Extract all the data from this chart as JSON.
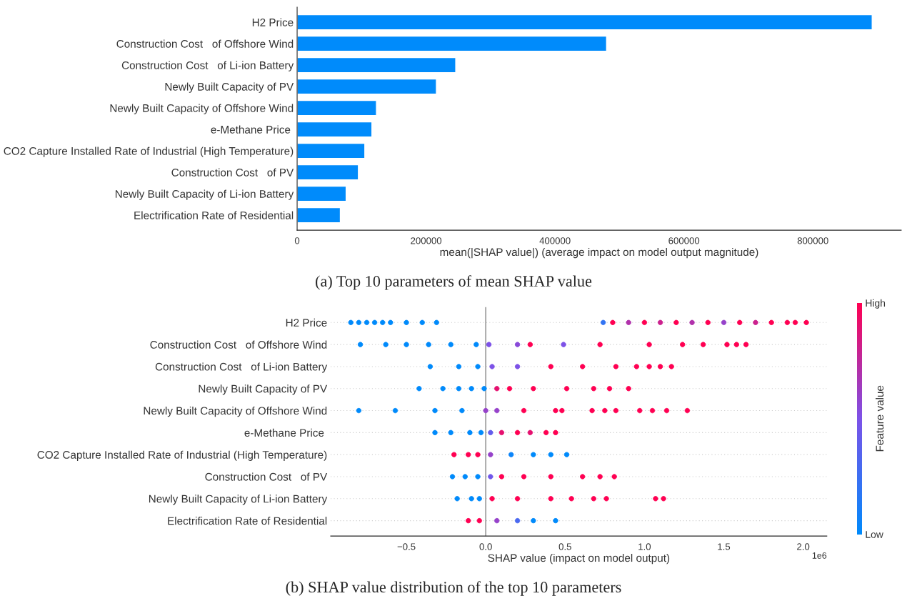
{
  "chart_data": [
    {
      "type": "bar",
      "orientation": "horizontal",
      "xlabel": "mean(|SHAP value|) (average impact on model output magnitude)",
      "categories": [
        "H2 Price",
        "Construction Cost   of Offshore Wind",
        "Construction Cost   of Li-ion Battery",
        "Newly Built Capacity of PV",
        "Newly Built Capacity of Offshore Wind",
        "e-Methane Price ",
        "CO2 Capture Installed Rate of Industrial (High Temperature)",
        "Construction Cost   of PV",
        "Newly Built Capacity of Li-ion Battery",
        "Electrification Rate of Residential"
      ],
      "values": [
        892000,
        480000,
        246000,
        216000,
        123000,
        116000,
        105000,
        95000,
        76000,
        67000
      ],
      "color": "#008bfb",
      "xlim": [
        0,
        937000
      ],
      "xticks": [
        0,
        200000,
        400000,
        600000,
        800000
      ],
      "grid": false,
      "annotations": [
        "(a) Top 10 parameters of mean SHAP value"
      ]
    },
    {
      "type": "scatter",
      "orientation": "horizontal",
      "xlabel": "SHAP value (impact on model output)",
      "clabel": "Feature value",
      "categories": [
        "H2 Price",
        "Construction Cost   of Offshore Wind",
        "Construction Cost   of Li-ion Battery",
        "Newly Built Capacity of PV",
        "Newly Built Capacity of Offshore Wind",
        "e-Methane Price ",
        "CO2 Capture Installed Rate of Industrial (High Temperature)",
        "Construction Cost   of PV",
        "Newly Built Capacity of Li-ion Battery",
        "Electrification Rate of Residential"
      ],
      "series": [
        {
          "values": [
            -0.85,
            -0.79,
            -0.35,
            -0.42,
            -0.8,
            -0.32,
            -0.2,
            -0.21,
            -0.18,
            -0.11
          ],
          "cvalues": [
            0,
            0,
            0,
            0,
            0,
            0,
            1,
            0,
            0,
            1
          ],
          "colors": [
            "#008afb",
            "#008afb",
            "#008afb",
            "#008afb",
            "#008afb",
            "#008afb",
            "#ff0052",
            "#008afb",
            "#008afb",
            "#ff0052"
          ]
        },
        {
          "values": [
            -0.8,
            -0.63,
            -0.17,
            -0.27,
            -0.57,
            -0.22,
            -0.11,
            -0.13,
            -0.09,
            -0.04
          ],
          "cvalues": [
            0,
            0,
            0,
            0,
            0,
            0,
            1,
            0,
            0,
            1
          ],
          "colors": [
            "#008afb",
            "#008afb",
            "#008afb",
            "#008afb",
            "#008afb",
            "#008afb",
            "#ff0052",
            "#008afb",
            "#008afb",
            "#ff0052"
          ]
        },
        {
          "values": [
            -0.75,
            -0.5,
            -0.05,
            -0.17,
            -0.32,
            -0.1,
            -0.05,
            -0.05,
            -0.04,
            0.07
          ],
          "cvalues": [
            0,
            0,
            0,
            0,
            0,
            0,
            1,
            0,
            0,
            0.6
          ],
          "colors": [
            "#008afb",
            "#008afb",
            "#008afb",
            "#008afb",
            "#008afb",
            "#008afb",
            "#ff0052",
            "#008afb",
            "#008afb",
            "#9642ca"
          ]
        },
        {
          "values": [
            -0.7,
            -0.36,
            0.04,
            -0.09,
            -0.15,
            -0.03,
            0.03,
            0.03,
            0.04,
            0.2
          ],
          "cvalues": [
            0,
            0,
            0.5,
            0,
            0,
            0,
            0.6,
            0.45,
            1,
            0.3
          ],
          "colors": [
            "#008afb",
            "#008afb",
            "#7c52e8",
            "#008afb",
            "#008afb",
            "#008afb",
            "#9642ca",
            "#7058ea",
            "#ff0052",
            "#4a68f0"
          ]
        },
        {
          "values": [
            -0.65,
            -0.22,
            0.2,
            -0.01,
            0.0,
            0.03,
            0.16,
            0.1,
            0.2,
            0.3
          ],
          "cvalues": [
            0,
            0,
            0.5,
            0,
            0.6,
            0.4,
            0.05,
            1,
            1,
            0
          ],
          "colors": [
            "#008afb",
            "#008afb",
            "#7c52e8",
            "#008afb",
            "#9642ca",
            "#635dec",
            "#0c84f9",
            "#ff0052",
            "#ff0052",
            "#008afb"
          ]
        },
        {
          "values": [
            -0.6,
            -0.06,
            0.41,
            0.07,
            0.07,
            0.1,
            0.3,
            0.24,
            0.41,
            0.44
          ],
          "cvalues": [
            0,
            0,
            1,
            0.9,
            0.6,
            0.9,
            0,
            1,
            1,
            0
          ],
          "colors": [
            "#008afb",
            "#008afb",
            "#ff0052",
            "#e51070",
            "#9642ca",
            "#e51070",
            "#008afb",
            "#ff0052",
            "#ff0052",
            "#008afb"
          ]
        },
        {
          "values": [
            -0.5,
            0.02,
            0.61,
            0.15,
            0.24,
            0.2,
            0.41,
            0.41,
            0.54,
            null
          ],
          "cvalues": [
            0,
            0.5,
            1,
            1,
            1,
            1,
            0,
            1,
            1,
            null
          ],
          "colors": [
            "#008afb",
            "#7c52e8",
            "#ff0052",
            "#ff0052",
            "#ff0052",
            "#ff0052",
            "#008afb",
            "#ff0052",
            "#ff0052",
            null
          ]
        },
        {
          "values": [
            -0.4,
            0.2,
            0.82,
            0.3,
            0.44,
            0.28,
            0.51,
            0.61,
            0.68,
            null
          ],
          "cvalues": [
            0,
            0.55,
            1,
            1,
            1,
            0.9,
            0,
            1,
            1,
            null
          ],
          "colors": [
            "#008afb",
            "#894ad9",
            "#ff0052",
            "#ff0052",
            "#ff0052",
            "#e51070",
            "#008afb",
            "#ff0052",
            "#ff0052",
            null
          ]
        },
        {
          "values": [
            -0.31,
            0.28,
            0.95,
            0.51,
            0.48,
            0.38,
            null,
            0.72,
            0.76,
            null
          ],
          "cvalues": [
            0,
            1,
            1,
            1,
            1,
            1,
            null,
            1,
            1,
            null
          ],
          "colors": [
            "#008afb",
            "#ff0052",
            "#ff0052",
            "#ff0052",
            "#ff0052",
            "#ff0052",
            null,
            "#ff0052",
            "#ff0052",
            null
          ]
        },
        {
          "values": [
            0.74,
            0.49,
            1.03,
            0.68,
            0.67,
            0.44,
            null,
            0.81,
            1.07,
            null
          ],
          "cvalues": [
            0.2,
            0.5,
            1,
            1,
            1,
            1,
            null,
            1,
            1,
            null
          ],
          "colors": [
            "#3274f3",
            "#7c52e8",
            "#ff0052",
            "#ff0052",
            "#ff0052",
            "#ff0052",
            null,
            "#ff0052",
            "#ff0052",
            null
          ]
        },
        {
          "values": [
            0.8,
            0.72,
            1.1,
            0.78,
            0.75,
            null,
            null,
            null,
            1.12,
            null
          ],
          "cvalues": [
            1,
            1,
            1,
            1,
            1,
            null,
            null,
            null,
            1,
            null
          ],
          "colors": [
            "#ff0052",
            "#ff0052",
            "#ff0052",
            "#ff0052",
            "#ff0052",
            null,
            null,
            null,
            "#ff0052",
            null
          ]
        },
        {
          "values": [
            0.9,
            1.03,
            1.17,
            0.9,
            0.82,
            null,
            null,
            null,
            null,
            null
          ],
          "cvalues": [
            0.7,
            1,
            1,
            1,
            1,
            null,
            null,
            null,
            null,
            null
          ],
          "colors": [
            "#b031ac",
            "#ff0052",
            "#ff0052",
            "#ff0052",
            "#ff0052",
            null,
            null,
            null,
            null,
            null
          ]
        },
        {
          "values": [
            1.0,
            1.24,
            null,
            null,
            0.97,
            null,
            null,
            null,
            null,
            null
          ],
          "cvalues": [
            1,
            1,
            null,
            null,
            1,
            null,
            null,
            null,
            null,
            null
          ],
          "colors": [
            "#ff0052",
            "#ff0052",
            null,
            null,
            "#ff0052",
            null,
            null,
            null,
            null,
            null
          ]
        },
        {
          "values": [
            1.1,
            1.37,
            null,
            null,
            1.05,
            null,
            null,
            null,
            null,
            null
          ],
          "cvalues": [
            0.8,
            1,
            null,
            null,
            1,
            null,
            null,
            null,
            null,
            null
          ],
          "colors": [
            "#cb218e",
            "#ff0052",
            null,
            null,
            "#ff0052",
            null,
            null,
            null,
            null,
            null
          ]
        },
        {
          "values": [
            1.2,
            1.52,
            null,
            null,
            1.14,
            null,
            null,
            null,
            null,
            null
          ],
          "cvalues": [
            1,
            1,
            null,
            null,
            1,
            null,
            null,
            null,
            null,
            null
          ],
          "colors": [
            "#ff0052",
            "#ff0052",
            null,
            null,
            "#ff0052",
            null,
            null,
            null,
            null,
            null
          ]
        },
        {
          "values": [
            1.3,
            1.58,
            null,
            null,
            1.27,
            null,
            null,
            null,
            null,
            null
          ],
          "cvalues": [
            0.7,
            1,
            null,
            null,
            1,
            null,
            null,
            null,
            null,
            null
          ],
          "colors": [
            "#b031ac",
            "#ff0052",
            null,
            null,
            "#ff0052",
            null,
            null,
            null,
            null,
            null
          ]
        },
        {
          "values": [
            1.4,
            1.64,
            null,
            null,
            null,
            null,
            null,
            null,
            null,
            null
          ],
          "cvalues": [
            1,
            1,
            null,
            null,
            null,
            null,
            null,
            null,
            null,
            null
          ],
          "colors": [
            "#ff0052",
            "#ff0052",
            null,
            null,
            null,
            null,
            null,
            null,
            null,
            null
          ]
        },
        {
          "values": [
            1.5,
            null,
            null,
            null,
            null,
            null,
            null,
            null,
            null,
            null
          ],
          "cvalues": [
            0.6,
            null,
            null,
            null,
            null,
            null,
            null,
            null,
            null,
            null
          ],
          "colors": [
            "#9642ca",
            null,
            null,
            null,
            null,
            null,
            null,
            null,
            null,
            null
          ]
        },
        {
          "values": [
            1.6,
            null,
            null,
            null,
            null,
            null,
            null,
            null,
            null,
            null
          ],
          "cvalues": [
            1,
            null,
            null,
            null,
            null,
            null,
            null,
            null,
            null,
            null
          ],
          "colors": [
            "#ff0052",
            null,
            null,
            null,
            null,
            null,
            null,
            null,
            null,
            null
          ]
        },
        {
          "values": [
            1.7,
            null,
            null,
            null,
            null,
            null,
            null,
            null,
            null,
            null
          ],
          "cvalues": [
            0.8,
            null,
            null,
            null,
            null,
            null,
            null,
            null,
            null,
            null
          ],
          "colors": [
            "#cb218e",
            null,
            null,
            null,
            null,
            null,
            null,
            null,
            null,
            null
          ]
        },
        {
          "values": [
            1.8,
            null,
            null,
            null,
            null,
            null,
            null,
            null,
            null,
            null
          ],
          "cvalues": [
            1,
            null,
            null,
            null,
            null,
            null,
            null,
            null,
            null,
            null
          ],
          "colors": [
            "#ff0052",
            null,
            null,
            null,
            null,
            null,
            null,
            null,
            null,
            null
          ]
        },
        {
          "values": [
            1.9,
            null,
            null,
            null,
            null,
            null,
            null,
            null,
            null,
            null
          ],
          "cvalues": [
            1,
            null,
            null,
            null,
            null,
            null,
            null,
            null,
            null,
            null
          ],
          "colors": [
            "#ff0052",
            null,
            null,
            null,
            null,
            null,
            null,
            null,
            null,
            null
          ]
        },
        {
          "values": [
            1.95,
            null,
            null,
            null,
            null,
            null,
            null,
            null,
            null,
            null
          ],
          "cvalues": [
            1,
            null,
            null,
            null,
            null,
            null,
            null,
            null,
            null,
            null
          ],
          "colors": [
            "#ff0052",
            null,
            null,
            null,
            null,
            null,
            null,
            null,
            null,
            null
          ]
        },
        {
          "values": [
            2.02,
            null,
            null,
            null,
            null,
            null,
            null,
            null,
            null,
            null
          ],
          "cvalues": [
            1,
            null,
            null,
            null,
            null,
            null,
            null,
            null,
            null,
            null
          ],
          "colors": [
            "#ff0052",
            null,
            null,
            null,
            null,
            null,
            null,
            null,
            null,
            null
          ]
        }
      ],
      "xlim": [
        -0.977,
        2.149
      ],
      "xticks": [
        {
          "value": -0.5,
          "label": "−0.5"
        },
        {
          "value": 0,
          "label": "0.0"
        },
        {
          "value": 0.5,
          "label": "0.5"
        },
        {
          "value": 1,
          "label": "1.0"
        },
        {
          "value": 1.5,
          "label": "1.5"
        },
        {
          "value": 2,
          "label": "2.0"
        }
      ],
      "ref_lines": [
        {
          "axis": "x",
          "value": 0,
          "color": "#999999"
        }
      ],
      "clim": [
        0,
        1
      ],
      "cticks": [
        {
          "value": 0,
          "label": "Low"
        },
        {
          "value": 1,
          "label": "High"
        }
      ],
      "grid": "y",
      "annotations": [
        "1e6",
        "(b) SHAP value distribution of the top 10 parameters"
      ]
    }
  ]
}
